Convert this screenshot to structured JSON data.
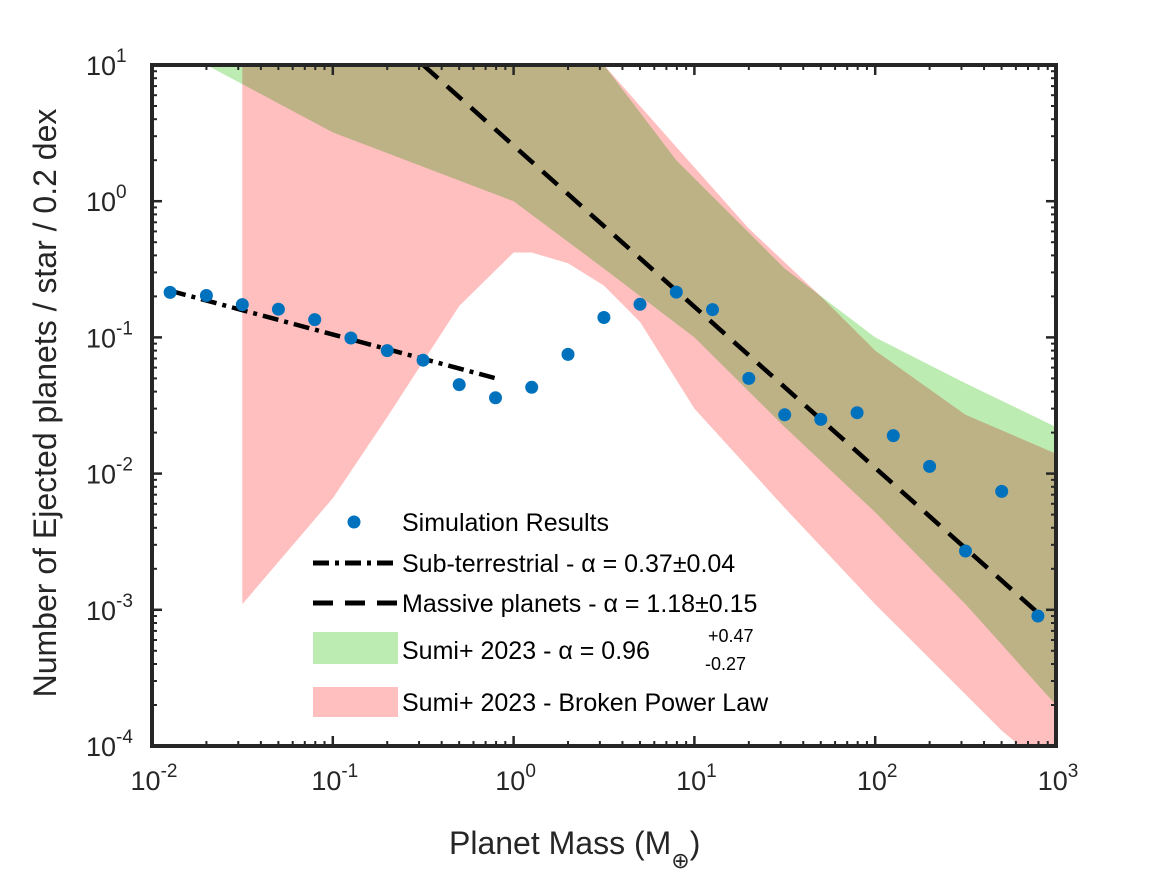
{
  "chart_data": {
    "type": "scatter",
    "xlabel": "Planet Mass (M",
    "xlabel_subscript": "⊕",
    "xlabel_close": ")",
    "ylabel": "Number of Ejected planets / star / 0.2 dex",
    "x_scale": "log",
    "y_scale": "log",
    "xlim": [
      0.01,
      1000
    ],
    "ylim": [
      0.0001,
      10
    ],
    "x_ticks": [
      {
        "base": "10",
        "exp": "-2",
        "value": 0.01
      },
      {
        "base": "10",
        "exp": "-1",
        "value": 0.1
      },
      {
        "base": "10",
        "exp": "0",
        "value": 1
      },
      {
        "base": "10",
        "exp": "1",
        "value": 10
      },
      {
        "base": "10",
        "exp": "2",
        "value": 100
      },
      {
        "base": "10",
        "exp": "3",
        "value": 1000
      }
    ],
    "y_ticks": [
      {
        "base": "10",
        "exp": "-4",
        "value": 0.0001
      },
      {
        "base": "10",
        "exp": "-3",
        "value": 0.001
      },
      {
        "base": "10",
        "exp": "-2",
        "value": 0.01
      },
      {
        "base": "10",
        "exp": "-1",
        "value": 0.1
      },
      {
        "base": "10",
        "exp": "0",
        "value": 1
      },
      {
        "base": "10",
        "exp": "1",
        "value": 10
      }
    ],
    "grid": false,
    "legend_position": "bottom-center",
    "colors": {
      "points": "#0072BD",
      "green_band": "#6DD454",
      "red_band": "#FF7F7F",
      "lines": "#000000",
      "axis": "#262626"
    },
    "series": [
      {
        "name": "Simulation Results",
        "kind": "points",
        "points": [
          [
            0.0126,
            0.214
          ],
          [
            0.02,
            0.203
          ],
          [
            0.0316,
            0.174
          ],
          [
            0.05,
            0.161
          ],
          [
            0.0794,
            0.135
          ],
          [
            0.126,
            0.099
          ],
          [
            0.2,
            0.08
          ],
          [
            0.316,
            0.068
          ],
          [
            0.5,
            0.045
          ],
          [
            0.794,
            0.036
          ],
          [
            1.26,
            0.043
          ],
          [
            2.0,
            0.075
          ],
          [
            3.16,
            0.14
          ],
          [
            5.0,
            0.175
          ],
          [
            7.94,
            0.215
          ],
          [
            12.6,
            0.16
          ],
          [
            20.0,
            0.05
          ],
          [
            31.6,
            0.027
          ],
          [
            50.0,
            0.025
          ],
          [
            79.4,
            0.028
          ],
          [
            126,
            0.019
          ],
          [
            200,
            0.0113
          ],
          [
            316,
            0.0027
          ],
          [
            501,
            0.0074
          ],
          [
            794,
            0.0009
          ]
        ]
      },
      {
        "name": "Sub-terrestrial - ",
        "alpha_value": "α = 0.37±0.04",
        "kind": "line",
        "dash": "dashdot",
        "points": [
          [
            0.0126,
            0.22
          ],
          [
            0.8,
            0.05
          ]
        ]
      },
      {
        "name": "Massive planets - ",
        "alpha_value": "α = 1.18±0.15",
        "kind": "line",
        "dash": "dashed",
        "points": [
          [
            0.316,
            10.0
          ],
          [
            794,
            0.00095
          ]
        ]
      },
      {
        "name": "Sumi+ 2023 - ",
        "alpha_value": "α = 0.96",
        "alpha_plus": "+0.47",
        "alpha_minus": "-0.27",
        "kind": "band",
        "color": "#6DD454",
        "upper": [
          [
            0.0316,
            10.0
          ],
          [
            1.0,
            10.0
          ],
          [
            3.16,
            10.0
          ],
          [
            7.94,
            2.0
          ],
          [
            31.6,
            0.32
          ],
          [
            100,
            0.1
          ],
          [
            316,
            0.046
          ],
          [
            1000,
            0.022
          ]
        ],
        "lower": [
          [
            1000,
            0.0002
          ],
          [
            316,
            0.0011
          ],
          [
            100,
            0.0052
          ],
          [
            31.6,
            0.022
          ],
          [
            10,
            0.1
          ],
          [
            3.16,
            0.32
          ],
          [
            1.0,
            1.0
          ],
          [
            0.1,
            3.2
          ],
          [
            0.02,
            10.0
          ]
        ]
      },
      {
        "name": "Sumi+ 2023 - Broken Power Law",
        "kind": "band",
        "color": "#FF7F7F",
        "upper": [
          [
            0.0316,
            10.0
          ],
          [
            3.16,
            10.0
          ],
          [
            7.94,
            2.5
          ],
          [
            20,
            0.63
          ],
          [
            50,
            0.2
          ],
          [
            100,
            0.08
          ],
          [
            316,
            0.027
          ],
          [
            1000,
            0.014
          ]
        ],
        "lower": [
          [
            1000,
            6e-05
          ],
          [
            500,
            0.00013
          ],
          [
            100,
            0.0011
          ],
          [
            31.6,
            0.0056
          ],
          [
            10,
            0.03
          ],
          [
            5,
            0.13
          ],
          [
            3.16,
            0.24
          ],
          [
            2.0,
            0.35
          ],
          [
            1.26,
            0.42
          ],
          [
            1.0,
            0.42
          ],
          [
            0.5,
            0.17
          ],
          [
            0.2,
            0.026
          ],
          [
            0.1,
            0.0066
          ],
          [
            0.0316,
            0.0011
          ]
        ]
      }
    ]
  }
}
